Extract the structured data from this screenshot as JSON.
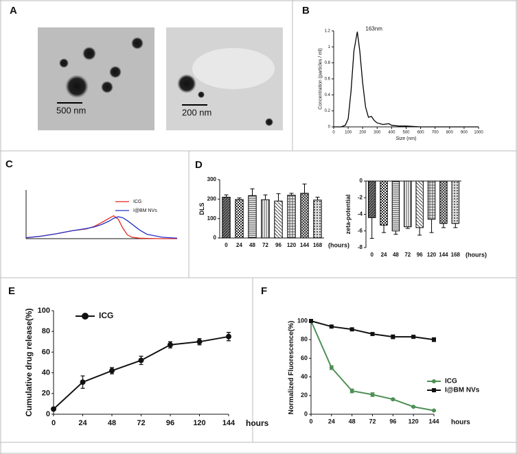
{
  "figure": {
    "panel_labels": [
      "A",
      "B",
      "C",
      "D",
      "E",
      "F"
    ],
    "scale_labels": [
      "500 nm",
      "200 nm"
    ]
  },
  "chart_data": [
    {
      "type": "line",
      "ylabel": "Concentration (particles / ml)",
      "xlabel": "Size (nm)",
      "annotation": "163nm",
      "x": [
        0,
        50,
        80,
        100,
        120,
        140,
        163,
        180,
        200,
        220,
        240,
        260,
        280,
        300,
        340,
        380,
        400,
        450,
        500,
        550,
        600,
        700,
        1000
      ],
      "series": [
        {
          "color": "#000000",
          "values": [
            0,
            0,
            0.02,
            0.1,
            0.45,
            0.95,
            1.19,
            0.95,
            0.55,
            0.25,
            0.12,
            0.13,
            0.08,
            0.05,
            0.03,
            0.04,
            0.02,
            0.01,
            0.01,
            0.005,
            0,
            0,
            0
          ]
        }
      ],
      "xlim": [
        0,
        1000
      ],
      "xticks": [
        0,
        100,
        200,
        300,
        400,
        500,
        600,
        700,
        800,
        900,
        1000
      ],
      "ylim": [
        0,
        1.2
      ],
      "yticks": [
        0,
        0.2,
        0.4,
        0.6,
        0.8,
        1,
        1.2
      ]
    },
    {
      "type": "line",
      "legend": "upper right",
      "x": [
        0,
        10,
        20,
        30,
        40,
        45,
        50,
        55,
        58,
        61,
        64,
        67,
        70,
        75,
        80,
        90,
        100
      ],
      "series": [
        {
          "name": "ICG",
          "color": "#e0261c",
          "values": [
            0.02,
            0.05,
            0.1,
            0.16,
            0.2,
            0.25,
            0.33,
            0.42,
            0.47,
            0.4,
            0.22,
            0.08,
            0.03,
            0.01,
            0.005,
            0,
            0
          ]
        },
        {
          "name": "I@BM NVs",
          "color": "#2230c8",
          "values": [
            0.02,
            0.05,
            0.1,
            0.16,
            0.21,
            0.24,
            0.29,
            0.36,
            0.42,
            0.45,
            0.43,
            0.37,
            0.3,
            0.18,
            0.09,
            0.03,
            0.01
          ]
        }
      ],
      "xlim": [
        0,
        100
      ],
      "ylim": [
        0,
        1
      ]
    },
    {
      "type": "bar",
      "ylabel": "DLS",
      "xlabel": "(hours)",
      "categories": [
        "0",
        "24",
        "48",
        "72",
        "96",
        "120",
        "144",
        "168"
      ],
      "values": [
        210,
        198,
        218,
        197,
        190,
        220,
        230,
        195
      ],
      "errors": [
        12,
        8,
        35,
        25,
        38,
        10,
        48,
        15
      ],
      "color": "#000000",
      "ylim": [
        0,
        300
      ],
      "yticks": [
        0,
        100,
        200,
        300
      ]
    },
    {
      "type": "bar",
      "ylabel": "zeta-potential",
      "xlabel": "(hours)",
      "categories": [
        "0",
        "24",
        "48",
        "72",
        "96",
        "120",
        "144",
        "168"
      ],
      "values": [
        -4.4,
        -5.3,
        -6.0,
        -5.5,
        -5.6,
        -4.6,
        -5.1,
        -5.1
      ],
      "errors": [
        2.5,
        0.9,
        0.4,
        0.2,
        0.9,
        1.6,
        0.5,
        0.5
      ],
      "color": "#000000",
      "ylim": [
        -8,
        0
      ],
      "yticks": [
        0,
        -2,
        -4,
        -6,
        -8
      ]
    },
    {
      "type": "line",
      "ylabel": "Cumulative drug release(%)",
      "xlabel": "hours",
      "legend": "upper left",
      "x": [
        0,
        24,
        48,
        72,
        96,
        120,
        144
      ],
      "series": [
        {
          "name": "ICG",
          "color": "#111111",
          "marker": "circle",
          "values": [
            5,
            31,
            42,
            52,
            67,
            70,
            75
          ],
          "errors": [
            0,
            6,
            3,
            4,
            3,
            3,
            4
          ]
        }
      ],
      "xlim": [
        0,
        144
      ],
      "xticks": [
        0,
        24,
        48,
        72,
        96,
        120,
        144
      ],
      "ylim": [
        0,
        100
      ],
      "yticks": [
        0,
        20,
        40,
        60,
        80,
        100
      ]
    },
    {
      "type": "line",
      "ylabel": "Normalized Fluorescence(%)",
      "xlabel": "hours",
      "legend": "center right",
      "x": [
        0,
        24,
        48,
        72,
        96,
        120,
        144
      ],
      "series": [
        {
          "name": "ICG",
          "color": "#4e8f55",
          "marker": "circle",
          "values": [
            100,
            50,
            25,
            21,
            16,
            8,
            4
          ],
          "errors": [
            0,
            2,
            2,
            2,
            1,
            0.5,
            0.5
          ]
        },
        {
          "name": "I@BM NVs",
          "color": "#111111",
          "marker": "square",
          "values": [
            100,
            94,
            91,
            86,
            83,
            83,
            80
          ],
          "errors": [
            0,
            1,
            1,
            1,
            2,
            1,
            2
          ]
        }
      ],
      "xlim": [
        0,
        144
      ],
      "xticks": [
        0,
        24,
        48,
        72,
        96,
        120,
        144
      ],
      "ylim": [
        0,
        100
      ],
      "yticks": [
        0,
        20,
        40,
        60,
        80,
        100
      ]
    }
  ]
}
